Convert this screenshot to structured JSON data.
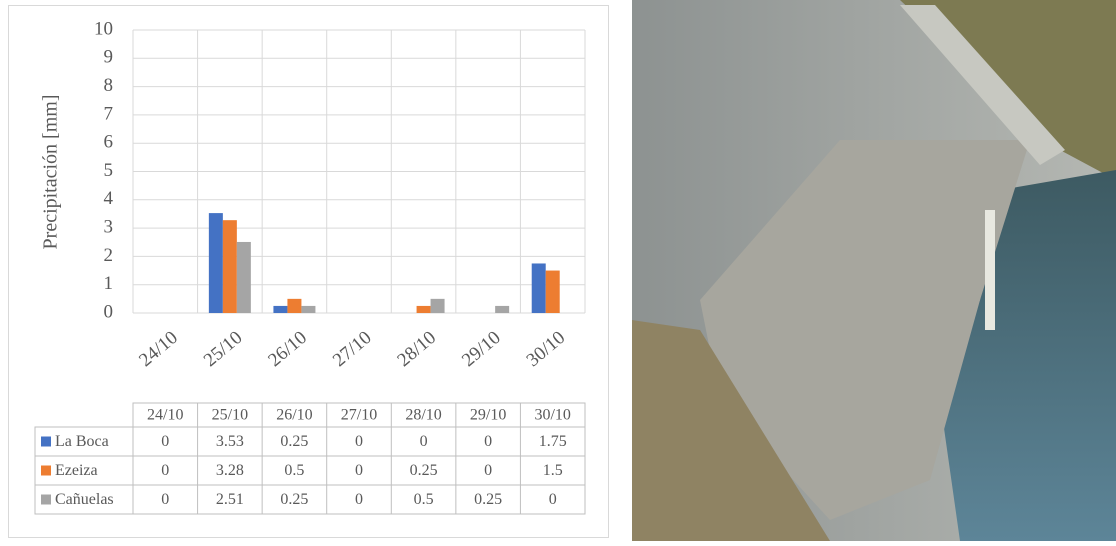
{
  "chart_data": {
    "type": "bar",
    "y_label": "Precipitación [mm]",
    "categories": [
      "24/10",
      "25/10",
      "26/10",
      "27/10",
      "28/10",
      "29/10",
      "30/10"
    ],
    "series": [
      {
        "name": "La Boca",
        "color": "#4472c4",
        "values": [
          0,
          3.53,
          0.25,
          0,
          0,
          0,
          1.75
        ]
      },
      {
        "name": "Ezeiza",
        "color": "#ed7d31",
        "values": [
          0,
          3.28,
          0.5,
          0,
          0.25,
          0,
          1.5
        ]
      },
      {
        "name": "Cañuelas",
        "color": "#a5a5a5",
        "values": [
          0,
          2.51,
          0.25,
          0,
          0.5,
          0.25,
          0
        ]
      }
    ],
    "ylim": [
      0,
      10
    ],
    "yticks": [
      0,
      1,
      2,
      3,
      4,
      5,
      6,
      7,
      8,
      9,
      10
    ],
    "grid": true
  }
}
